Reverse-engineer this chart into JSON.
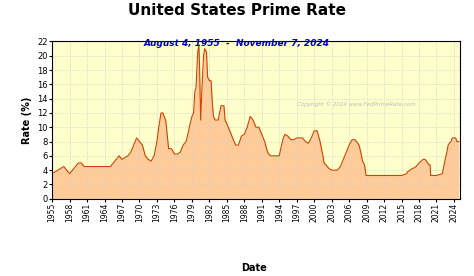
{
  "title": "United States Prime Rate",
  "subtitle": "August 4, 1955  -  November 7, 2024",
  "xlabel": "Date",
  "ylabel": "Rate (%)",
  "copyright": "Copyright © 2024 www.FedPrimeRate.com",
  "background_color": "#ffffcc",
  "outer_background": "#ffffff",
  "line_color": "#cc4400",
  "fill_color": "#ffcc99",
  "title_color": "#000000",
  "subtitle_color": "#0000cc",
  "grid_color": "#cccccc",
  "ylim": [
    0,
    22
  ],
  "yticks": [
    0,
    2,
    4,
    6,
    8,
    10,
    12,
    14,
    16,
    18,
    20,
    22
  ],
  "xtick_years": [
    1955,
    1958,
    1961,
    1964,
    1967,
    1970,
    1973,
    1976,
    1979,
    1982,
    1985,
    1988,
    1991,
    1994,
    1997,
    2000,
    2003,
    2006,
    2009,
    2012,
    2015,
    2018,
    2021,
    2024
  ],
  "data": [
    [
      1955.0,
      3.5
    ],
    [
      1956.0,
      4.0
    ],
    [
      1957.0,
      4.5
    ],
    [
      1957.5,
      4.0
    ],
    [
      1958.0,
      3.5
    ],
    [
      1958.5,
      4.0
    ],
    [
      1959.0,
      4.5
    ],
    [
      1959.5,
      5.0
    ],
    [
      1960.0,
      5.0
    ],
    [
      1960.5,
      4.5
    ],
    [
      1961.0,
      4.5
    ],
    [
      1962.0,
      4.5
    ],
    [
      1963.0,
      4.5
    ],
    [
      1964.0,
      4.5
    ],
    [
      1965.0,
      4.5
    ],
    [
      1965.5,
      5.0
    ],
    [
      1966.0,
      5.5
    ],
    [
      1966.5,
      6.0
    ],
    [
      1967.0,
      5.5
    ],
    [
      1968.0,
      6.0
    ],
    [
      1968.5,
      6.5
    ],
    [
      1969.0,
      7.5
    ],
    [
      1969.5,
      8.5
    ],
    [
      1970.0,
      8.0
    ],
    [
      1970.5,
      7.5
    ],
    [
      1971.0,
      6.0
    ],
    [
      1971.5,
      5.5
    ],
    [
      1972.0,
      5.25
    ],
    [
      1972.5,
      6.0
    ],
    [
      1973.0,
      8.0
    ],
    [
      1973.3,
      10.0
    ],
    [
      1973.7,
      12.0
    ],
    [
      1974.0,
      12.0
    ],
    [
      1974.5,
      11.0
    ],
    [
      1975.0,
      7.0
    ],
    [
      1975.5,
      7.0
    ],
    [
      1976.0,
      6.25
    ],
    [
      1976.5,
      6.25
    ],
    [
      1977.0,
      6.5
    ],
    [
      1977.5,
      7.5
    ],
    [
      1978.0,
      8.0
    ],
    [
      1978.3,
      9.0
    ],
    [
      1978.7,
      10.5
    ],
    [
      1979.0,
      11.5
    ],
    [
      1979.3,
      12.0
    ],
    [
      1979.5,
      15.0
    ],
    [
      1979.7,
      15.5
    ],
    [
      1980.0,
      20.5
    ],
    [
      1980.2,
      21.5
    ],
    [
      1980.3,
      19.0
    ],
    [
      1980.5,
      11.0
    ],
    [
      1980.7,
      15.0
    ],
    [
      1981.0,
      20.0
    ],
    [
      1981.2,
      21.0
    ],
    [
      1981.5,
      20.5
    ],
    [
      1981.7,
      17.0
    ],
    [
      1982.0,
      16.5
    ],
    [
      1982.3,
      16.5
    ],
    [
      1982.5,
      13.5
    ],
    [
      1982.7,
      11.5
    ],
    [
      1983.0,
      11.0
    ],
    [
      1983.5,
      11.0
    ],
    [
      1984.0,
      13.0
    ],
    [
      1984.5,
      13.0
    ],
    [
      1984.7,
      11.0
    ],
    [
      1985.0,
      10.5
    ],
    [
      1985.5,
      9.5
    ],
    [
      1986.0,
      8.5
    ],
    [
      1986.5,
      7.5
    ],
    [
      1987.0,
      7.5
    ],
    [
      1987.5,
      8.75
    ],
    [
      1988.0,
      9.0
    ],
    [
      1988.5,
      10.0
    ],
    [
      1989.0,
      11.5
    ],
    [
      1989.5,
      11.0
    ],
    [
      1990.0,
      10.0
    ],
    [
      1990.5,
      10.0
    ],
    [
      1991.0,
      9.0
    ],
    [
      1991.5,
      8.0
    ],
    [
      1992.0,
      6.5
    ],
    [
      1992.5,
      6.0
    ],
    [
      1993.0,
      6.0
    ],
    [
      1993.5,
      6.0
    ],
    [
      1994.0,
      6.0
    ],
    [
      1994.3,
      7.15
    ],
    [
      1994.7,
      8.5
    ],
    [
      1995.0,
      9.0
    ],
    [
      1995.5,
      8.75
    ],
    [
      1996.0,
      8.25
    ],
    [
      1996.5,
      8.25
    ],
    [
      1997.0,
      8.5
    ],
    [
      1997.5,
      8.5
    ],
    [
      1998.0,
      8.5
    ],
    [
      1998.5,
      8.0
    ],
    [
      1999.0,
      7.75
    ],
    [
      1999.5,
      8.5
    ],
    [
      2000.0,
      9.5
    ],
    [
      2000.5,
      9.5
    ],
    [
      2001.0,
      8.0
    ],
    [
      2001.5,
      6.0
    ],
    [
      2001.7,
      5.0
    ],
    [
      2002.0,
      4.75
    ],
    [
      2002.5,
      4.25
    ],
    [
      2003.0,
      4.0
    ],
    [
      2003.5,
      4.0
    ],
    [
      2004.0,
      4.0
    ],
    [
      2004.5,
      4.5
    ],
    [
      2005.0,
      5.5
    ],
    [
      2005.5,
      6.5
    ],
    [
      2006.0,
      7.5
    ],
    [
      2006.5,
      8.25
    ],
    [
      2007.0,
      8.25
    ],
    [
      2007.5,
      7.75
    ],
    [
      2007.7,
      7.5
    ],
    [
      2008.0,
      6.5
    ],
    [
      2008.3,
      5.25
    ],
    [
      2008.5,
      5.0
    ],
    [
      2008.7,
      4.5
    ],
    [
      2008.9,
      3.25
    ],
    [
      2009.0,
      3.25
    ],
    [
      2015.0,
      3.25
    ],
    [
      2015.9,
      3.5
    ],
    [
      2016.0,
      3.75
    ],
    [
      2016.9,
      4.25
    ],
    [
      2017.0,
      4.25
    ],
    [
      2017.5,
      4.5
    ],
    [
      2018.0,
      5.0
    ],
    [
      2018.7,
      5.5
    ],
    [
      2019.0,
      5.5
    ],
    [
      2019.3,
      5.25
    ],
    [
      2019.7,
      4.75
    ],
    [
      2019.9,
      4.75
    ],
    [
      2020.0,
      3.25
    ],
    [
      2020.3,
      3.25
    ],
    [
      2021.0,
      3.25
    ],
    [
      2022.0,
      3.5
    ],
    [
      2022.3,
      4.75
    ],
    [
      2022.5,
      5.5
    ],
    [
      2022.7,
      6.25
    ],
    [
      2022.9,
      7.0
    ],
    [
      2023.0,
      7.5
    ],
    [
      2023.2,
      7.75
    ],
    [
      2023.5,
      8.0
    ],
    [
      2023.7,
      8.5
    ],
    [
      2023.9,
      8.5
    ],
    [
      2024.0,
      8.5
    ],
    [
      2024.3,
      8.5
    ],
    [
      2024.5,
      8.0
    ],
    [
      2024.8,
      8.0
    ]
  ]
}
